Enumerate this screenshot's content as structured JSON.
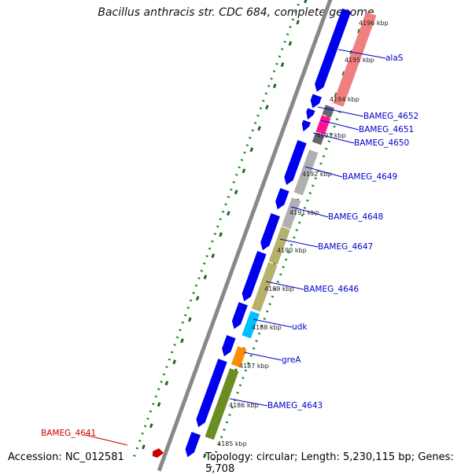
{
  "title": "Bacillus anthracis str. CDC 684, complete genome",
  "footer": {
    "accession": "Accession: NC_012581",
    "topology": "Topology: circular; Length: 5,230,115 bp; Genes: 5,708"
  },
  "colors": {
    "backbone": "#888888",
    "forward_strand": "#0000ee",
    "tick": "#1b6e1b",
    "dots": "#1a8a1a",
    "highlight": "#cc0000"
  },
  "kbp_ticks": [
    "4185 kbp",
    "4186 kbp",
    "4187 kbp",
    "4188 kbp",
    "4189 kbp",
    "4190 kbp",
    "4191 kbp",
    "4192 kbp",
    "4193 kbp",
    "4194 kbp",
    "4195 kbp",
    "4196 kbp"
  ],
  "genes": [
    {
      "name": "alaS",
      "color": "#f08080"
    },
    {
      "name": "BAMEG_4652",
      "color": "#666666"
    },
    {
      "name": "BAMEG_4651",
      "color": "#ff1493"
    },
    {
      "name": "BAMEG_4650",
      "color": "#666666"
    },
    {
      "name": "BAMEG_4649",
      "color": "#b0b0b0"
    },
    {
      "name": "BAMEG_4648",
      "color": "#b0b0b0"
    },
    {
      "name": "BAMEG_4647",
      "color": "#b5b06a"
    },
    {
      "name": "BAMEG_4646",
      "color": "#b5b06a"
    },
    {
      "name": "udk",
      "color": "#00bfff"
    },
    {
      "name": "greA",
      "color": "#ff8c00"
    },
    {
      "name": "BAMEG_4643",
      "color": "#6b8e23"
    }
  ],
  "highlight_gene": {
    "name": "BAMEG_4641",
    "color": "#cc0000"
  }
}
